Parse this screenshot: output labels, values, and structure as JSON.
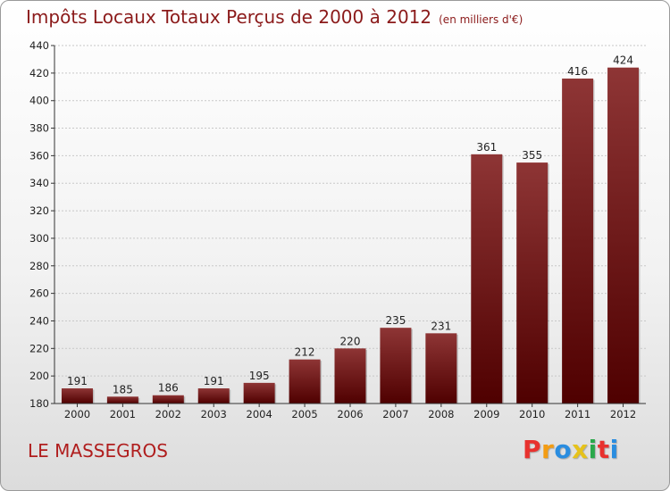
{
  "header": {
    "title": "Impôts Locaux Totaux Perçus de 2000 à 2012",
    "subtitle": "(en milliers d'€)"
  },
  "footer": {
    "place": "LE MASSEGROS",
    "brand": "Proxiti",
    "brand_colors": [
      "#e8312e",
      "#f39c12",
      "#2a8de0",
      "#e6c21b",
      "#2aa84a",
      "#e8312e",
      "#2a8de0"
    ]
  },
  "colors": {
    "bar_top": "#8e3535",
    "bar_bottom": "#4f0000",
    "grid": "#c8c8c8",
    "axis": "#333333"
  },
  "chart_data": {
    "type": "bar",
    "categories": [
      "2000",
      "2001",
      "2002",
      "2003",
      "2004",
      "2005",
      "2006",
      "2007",
      "2008",
      "2009",
      "2010",
      "2011",
      "2012"
    ],
    "values": [
      191,
      185,
      186,
      191,
      195,
      212,
      220,
      235,
      231,
      361,
      355,
      416,
      424
    ],
    "value_labels": [
      "191",
      "185",
      "186",
      "191",
      "195",
      "212",
      "220",
      "235",
      "231",
      "361",
      "355",
      "416",
      "424"
    ],
    "ylim": [
      180,
      440
    ],
    "yticks": [
      180,
      200,
      220,
      240,
      260,
      280,
      300,
      320,
      340,
      360,
      380,
      400,
      420,
      440
    ],
    "ytick_labels": [
      "180",
      "200",
      "220",
      "240",
      "260",
      "280",
      "300",
      "320",
      "340",
      "360",
      "380",
      "400",
      "420",
      "440"
    ],
    "grid": true,
    "title": "Impôts Locaux Totaux Perçus de 2000 à 2012",
    "xlabel": "",
    "ylabel": ""
  }
}
